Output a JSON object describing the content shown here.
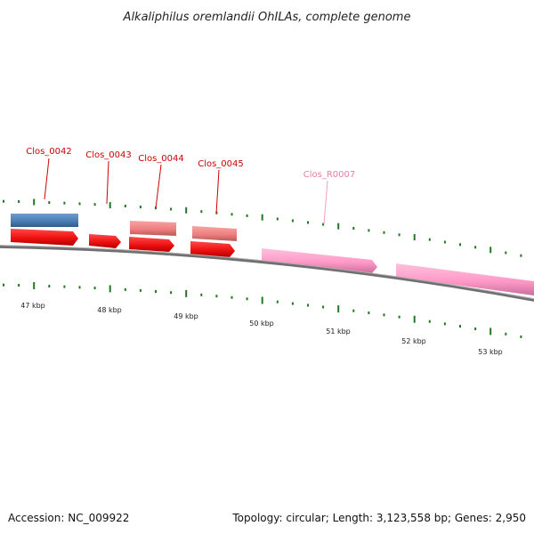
{
  "title": "Alkaliphilus oremlandii OhILAs, complete genome",
  "footer": {
    "accession": "Accession: NC_009922",
    "summary": "Topology: circular; Length: 3,123,558 bp; Genes: 2,950"
  },
  "colors": {
    "label_red": "#cc0000",
    "label_pink": "#e37fa6",
    "gene_blue": "#4a7fb5",
    "gene_red": "#ee1111",
    "gene_salmon": "#ef8080",
    "gene_pink": "#ff9ac8",
    "backbone": "#808080",
    "tick_green": "#227722"
  },
  "labels": {
    "clos_0042": "Clos_0042",
    "clos_0043": "Clos_0043",
    "clos_0044": "Clos_0044",
    "clos_0045": "Clos_0045",
    "clos_r0007": "Clos_R0007"
  },
  "scale": {
    "kbp47": "47 kbp",
    "kbp48": "48 kbp",
    "kbp49": "49 kbp",
    "kbp50": "50 kbp",
    "kbp51": "51 kbp",
    "kbp52": "52 kbp",
    "kbp53": "53 kbp"
  }
}
